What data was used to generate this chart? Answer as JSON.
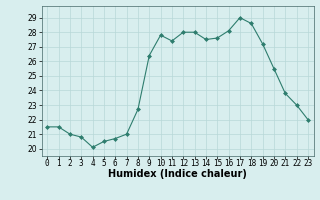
{
  "x": [
    0,
    1,
    2,
    3,
    4,
    5,
    6,
    7,
    8,
    9,
    10,
    11,
    12,
    13,
    14,
    15,
    16,
    17,
    18,
    19,
    20,
    21,
    22,
    23
  ],
  "y": [
    21.5,
    21.5,
    21.0,
    20.8,
    20.1,
    20.5,
    20.7,
    21.0,
    22.7,
    26.4,
    27.8,
    27.4,
    28.0,
    28.0,
    27.5,
    27.6,
    28.1,
    29.0,
    28.6,
    27.2,
    25.5,
    23.8,
    23.0,
    22.0
  ],
  "line_color": "#2e7d6e",
  "marker": "D",
  "marker_size": 2.0,
  "xlabel": "Humidex (Indice chaleur)",
  "ylim": [
    19.5,
    29.8
  ],
  "xlim": [
    -0.5,
    23.5
  ],
  "yticks": [
    20,
    21,
    22,
    23,
    24,
    25,
    26,
    27,
    28,
    29
  ],
  "xticks": [
    0,
    1,
    2,
    3,
    4,
    5,
    6,
    7,
    8,
    9,
    10,
    11,
    12,
    13,
    14,
    15,
    16,
    17,
    18,
    19,
    20,
    21,
    22,
    23
  ],
  "bg_color": "#d8eeee",
  "grid_color": "#b8d8d8",
  "tick_fontsize": 5.5,
  "xlabel_fontsize": 7.0,
  "xlabel_fontweight": "bold"
}
